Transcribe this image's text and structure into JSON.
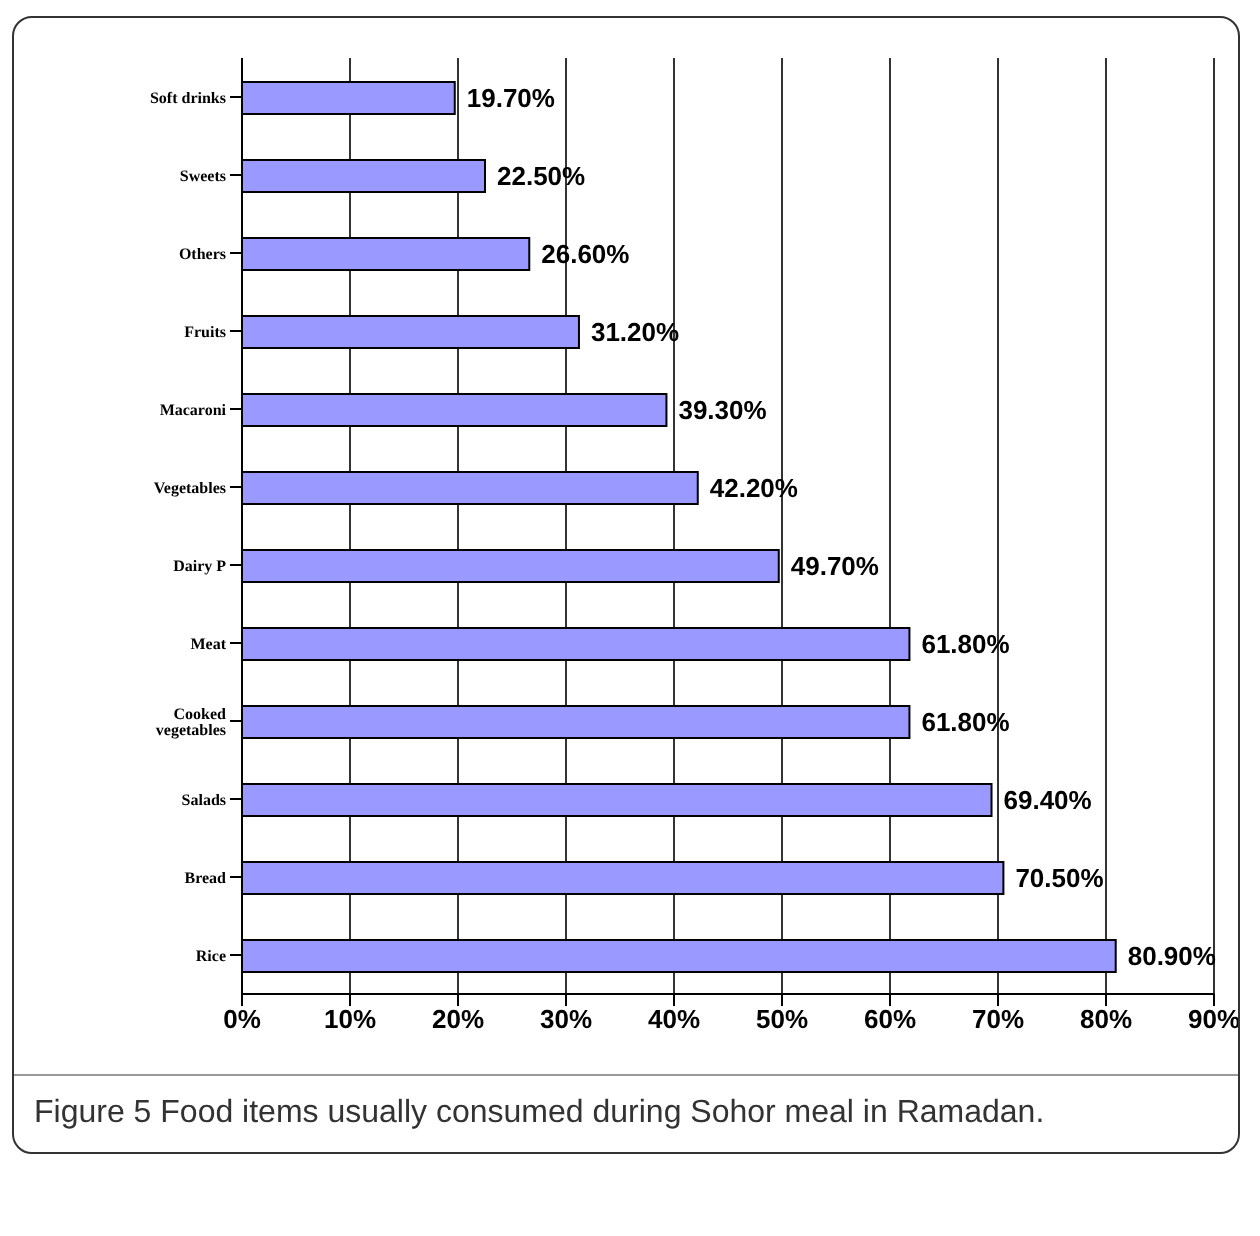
{
  "chart_data": {
    "type": "bar",
    "orientation": "horizontal",
    "categories": [
      "Soft drinks",
      "Sweets",
      "Others",
      "Fruits",
      "Macaroni",
      "Vegetables",
      "Dairy P",
      "Meat",
      "Cooked vegetables",
      "Salads",
      "Bread",
      "Rice"
    ],
    "values": [
      19.7,
      22.5,
      26.6,
      31.2,
      39.3,
      42.2,
      49.7,
      61.8,
      61.8,
      69.4,
      70.5,
      80.9
    ],
    "value_labels": [
      "19.70%",
      "22.50%",
      "26.60%",
      "31.20%",
      "39.30%",
      "42.20%",
      "49.70%",
      "61.80%",
      "61.80%",
      "69.40%",
      "70.50%",
      "80.90%"
    ],
    "color": "#9999ff",
    "xlim": [
      0,
      90
    ],
    "xticks": [
      {
        "value": 0,
        "label": "0%"
      },
      {
        "value": 10,
        "label": "10%"
      },
      {
        "value": 20,
        "label": "20%"
      },
      {
        "value": 30,
        "label": "30%"
      },
      {
        "value": 40,
        "label": "40%"
      },
      {
        "value": 50,
        "label": "50%"
      },
      {
        "value": 60,
        "label": "60%"
      },
      {
        "value": 70,
        "label": "70%"
      },
      {
        "value": 80,
        "label": "80%"
      },
      {
        "value": 90,
        "label": "90%"
      }
    ],
    "grid": "x",
    "legend": false,
    "annotations": [
      "Figure 5 Food items usually consumed during Sohor meal in Ramadan."
    ]
  }
}
